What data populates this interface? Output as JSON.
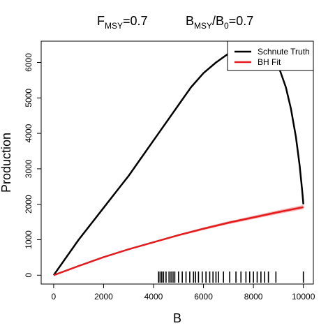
{
  "chart_data": {
    "type": "line",
    "title_parts": {
      "f_main": "F",
      "f_sub": "MSY",
      "f_value": "=0.7",
      "b_main": "B",
      "b_sub": "MSY",
      "b_slash": "/B",
      "b_sub0": "0",
      "b_value": "=0.7"
    },
    "xlabel": "B",
    "ylabel": "Production",
    "xlim": [
      -500,
      10400
    ],
    "ylim": [
      -250,
      6600
    ],
    "x_ticks": [
      0,
      2000,
      4000,
      6000,
      8000,
      10000
    ],
    "y_ticks": [
      0,
      1000,
      2000,
      3000,
      4000,
      5000,
      6000
    ],
    "legend": {
      "position": "top-right",
      "entries": [
        {
          "label": "Schnute Truth",
          "color": "#000000"
        },
        {
          "label": "BH Fit",
          "color": "#e41a1c"
        }
      ]
    },
    "series": [
      {
        "name": "Schnute Truth",
        "color": "#000000",
        "x": [
          0,
          500,
          1000,
          1500,
          2000,
          2500,
          3000,
          3500,
          4000,
          4500,
          5000,
          5500,
          6000,
          6500,
          7000,
          7500,
          8000,
          8500,
          9000,
          9300,
          9500,
          9700,
          9850,
          9950,
          10000
        ],
        "y": [
          0,
          500,
          1000,
          1450,
          1900,
          2350,
          2800,
          3300,
          3800,
          4300,
          4800,
          5300,
          5700,
          6000,
          6250,
          6400,
          6450,
          6350,
          5900,
          5300,
          4700,
          3900,
          3100,
          2400,
          2000
        ]
      },
      {
        "name": "BH Fit",
        "color": "#e41a1c",
        "band_color": "#f4a5a5",
        "x": [
          0,
          1000,
          2000,
          3000,
          4000,
          5000,
          6000,
          7000,
          8000,
          9000,
          10000
        ],
        "y": [
          0,
          260,
          510,
          730,
          930,
          1130,
          1310,
          1480,
          1630,
          1780,
          1920
        ],
        "band_halfwidth": 60
      }
    ],
    "rug_x": [
      4200,
      4260,
      4330,
      4400,
      4500,
      4620,
      4700,
      4780,
      4850,
      5000,
      5150,
      5300,
      5450,
      5600,
      5680,
      5800,
      5950,
      6100,
      6250,
      6380,
      6500,
      6600,
      6800,
      7050,
      7300,
      7500,
      7700,
      7850,
      8000,
      8150,
      8300,
      8450,
      8600,
      8900,
      10000
    ]
  }
}
